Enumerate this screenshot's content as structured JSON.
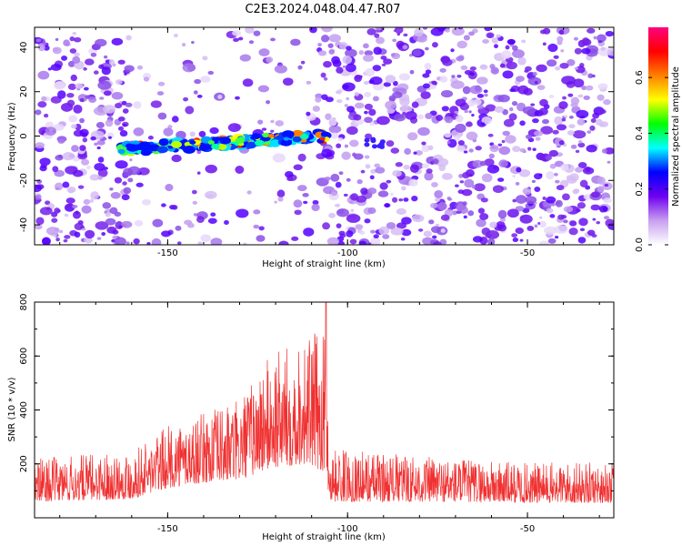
{
  "title": "C2E3.2024.048.04.47.R07",
  "chart_data": [
    {
      "type": "heatmap",
      "xlabel": "Height of straight line (km)",
      "ylabel": "Frequency (Hz)",
      "xlim": [
        -187,
        -26
      ],
      "ylim": [
        -49,
        49
      ],
      "x_ticks": [
        -150,
        -100,
        -50
      ],
      "y_ticks": [
        40,
        20,
        0,
        -20,
        -40
      ],
      "colorbar": {
        "label": "Normalized spectral amplitude",
        "range": [
          0,
          0.78
        ],
        "ticks": [
          0.0,
          0.2,
          0.4,
          0.6
        ],
        "colors": [
          "#ffffff",
          "#c8a0f0",
          "#6f00f0",
          "#0000ff",
          "#00ffff",
          "#00ff00",
          "#ffff00",
          "#ff8000",
          "#ff0000",
          "#ff0080"
        ]
      },
      "features": {
        "signal_band": {
          "x_start": -163,
          "x_end": -106,
          "freq_start": -6,
          "freq_end": 0,
          "peak_amplitude": 0.75
        },
        "quiet_region": {
          "x_start": -160,
          "x_end": -107,
          "note": "lower noise above and below signal band"
        }
      }
    },
    {
      "type": "line",
      "xlabel": "Height of straight line (km)",
      "ylabel": "SNR (10 * v/v)",
      "xlim": [
        -187,
        -26
      ],
      "ylim": [
        0,
        800
      ],
      "x_ticks": [
        -150,
        -100,
        -50
      ],
      "y_ticks": [
        200,
        400,
        600,
        800
      ],
      "series_color": "#f03030",
      "profile": [
        {
          "x": -187,
          "base": 60,
          "spread": 160
        },
        {
          "x": -160,
          "base": 70,
          "spread": 180
        },
        {
          "x": -150,
          "base": 110,
          "spread": 230
        },
        {
          "x": -140,
          "base": 130,
          "spread": 260
        },
        {
          "x": -130,
          "base": 140,
          "spread": 300
        },
        {
          "x": -122,
          "base": 180,
          "spread": 420
        },
        {
          "x": -112,
          "base": 200,
          "spread": 480
        },
        {
          "x": -106,
          "base": 170,
          "spread": 520
        },
        {
          "x": -105,
          "base": 60,
          "spread": 200
        },
        {
          "x": -80,
          "base": 60,
          "spread": 170
        },
        {
          "x": -50,
          "base": 55,
          "spread": 150
        },
        {
          "x": -26,
          "base": 55,
          "spread": 150
        }
      ],
      "peak": {
        "x": -106,
        "y": 800
      }
    }
  ]
}
